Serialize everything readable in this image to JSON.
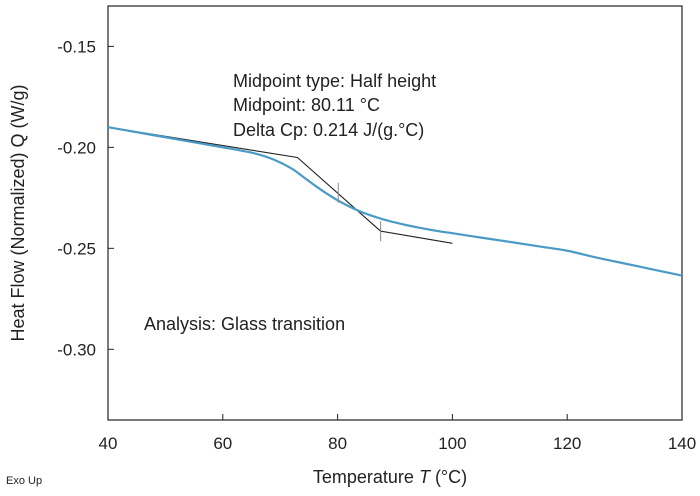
{
  "chart_data": {
    "type": "line",
    "xlabel_prefix": "Temperature ",
    "xlabel_var": "T",
    "xlabel_unit": " (°C)",
    "ylabel": "Heat Flow (Normalized) Q (W/g)",
    "xlim": [
      40,
      140
    ],
    "ylim": [
      -0.335,
      -0.13
    ],
    "xticks": [
      "40",
      "60",
      "80",
      "100",
      "120",
      "140"
    ],
    "yticks": [
      "-0.15",
      "-0.20",
      "-0.25",
      "-0.30"
    ],
    "grid": false,
    "series": [
      {
        "color": "#4a9ac8",
        "x": [
          40,
          45,
          50,
          55,
          60,
          63,
          66,
          69,
          72,
          74,
          76,
          78,
          80,
          82,
          84,
          86,
          88,
          90,
          92,
          95,
          98,
          100,
          105,
          110,
          115,
          120,
          125,
          130,
          135,
          140
        ],
        "y": [
          -0.19,
          -0.1925,
          -0.195,
          -0.1975,
          -0.2,
          -0.2015,
          -0.2033,
          -0.2062,
          -0.2105,
          -0.2146,
          -0.2188,
          -0.2227,
          -0.2262,
          -0.2292,
          -0.2318,
          -0.2339,
          -0.2357,
          -0.2372,
          -0.2385,
          -0.2402,
          -0.2417,
          -0.2425,
          -0.2447,
          -0.2468,
          -0.249,
          -0.2512,
          -0.2545,
          -0.2575,
          -0.2605,
          -0.2635
        ]
      }
    ],
    "construction_lines": [
      {
        "color": "#222222",
        "x": [
          40,
          73,
          87.5,
          100
        ],
        "y": [
          -0.19,
          -0.205,
          -0.2415,
          -0.2475
        ]
      }
    ],
    "markers": [
      {
        "x": 80.11,
        "y": -0.2225
      },
      {
        "x": 87.5,
        "y": -0.2415
      }
    ],
    "annotations": {
      "midpoint_type": "Midpoint type: Half height",
      "midpoint": "Midpoint: 80.11 °C",
      "delta_cp": "Delta Cp: 0.214 J/(g.°C)",
      "analysis": "Analysis: Glass transition"
    },
    "footer": "Exo Up"
  }
}
